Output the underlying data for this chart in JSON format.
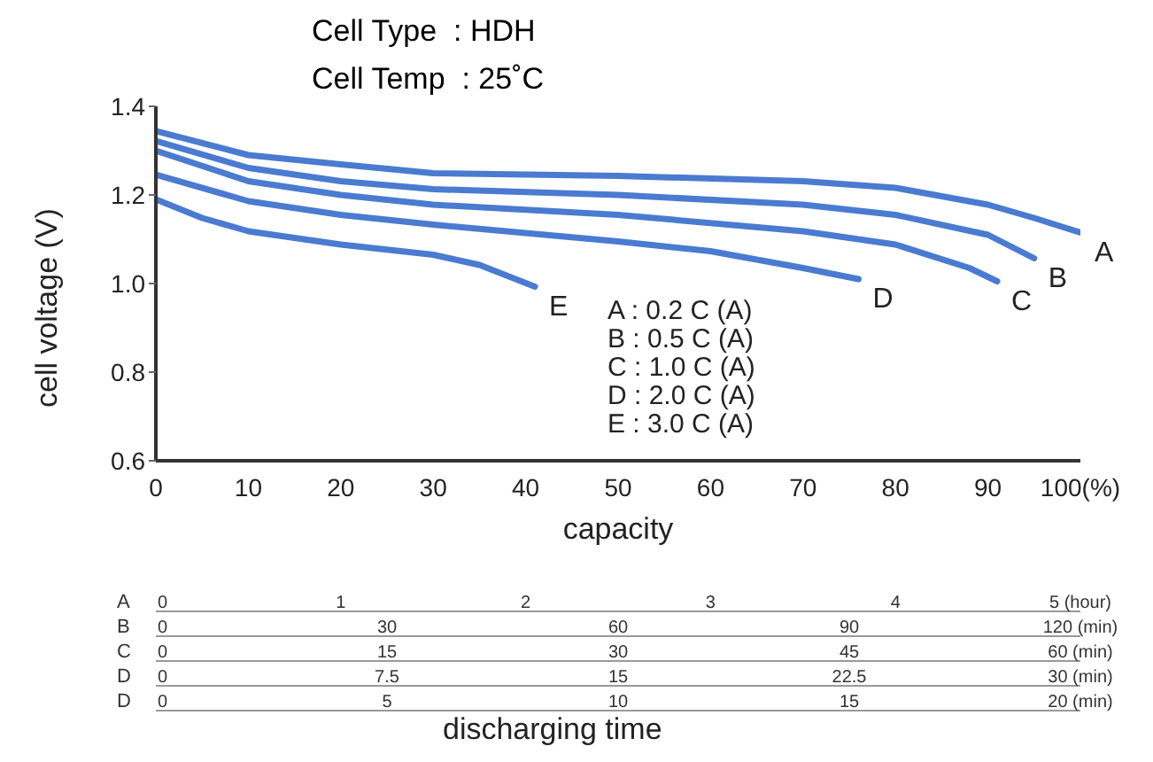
{
  "chart_data": {
    "type": "line",
    "title": "Cell Type  : HDH",
    "subtitle": "Cell Temp  : 25˚C",
    "xlabel": "capacity",
    "ylabel": "cell voltage (V)",
    "xlim": [
      0,
      100
    ],
    "xticks": [
      0,
      10,
      20,
      30,
      40,
      50,
      60,
      70,
      80,
      90,
      {
        "value": 100,
        "label": "100(%)"
      }
    ],
    "ylim": [
      0.6,
      1.4
    ],
    "yticks": [
      {
        "value": 0.6,
        "label": "0.6"
      },
      {
        "value": 0.8,
        "label": "0.8"
      },
      {
        "value": 1,
        "label": "1.0"
      },
      {
        "value": 1.2,
        "label": "1.2"
      },
      {
        "value": 1.4,
        "label": "1.4"
      }
    ],
    "x2label": "A",
    "x2lim": [
      0,
      5
    ],
    "x2ticks": [
      0,
      1,
      2,
      3,
      4,
      {
        "value": 5,
        "label": "5 (hour)"
      }
    ],
    "grid": false,
    "legend": false,
    "marker": "none",
    "line_style": "solid",
    "annotations": [
      "A : 0.2 C (A)",
      "B : 0.5 C (A)",
      "C : 1.0 C (A)",
      "D : 2.0 C (A)",
      "E : 3.0 C (A)",
      "discharging time",
      "B",
      "0",
      "30",
      "60",
      "90",
      "120 (min)",
      "C",
      "0",
      "15",
      "30",
      "45",
      "60 (min)",
      "D",
      "0",
      "7.5",
      "15",
      "22.5",
      "30 (min)",
      "D",
      "0",
      "5",
      "10",
      "15",
      "20 (min)"
    ],
    "series": [
      {
        "name": "A",
        "color": "#4a7bd0",
        "x": [
          0,
          10,
          20,
          30,
          50,
          70,
          80,
          90,
          95,
          100
        ],
        "values": [
          1.344,
          1.29,
          1.269,
          1.249,
          1.243,
          1.231,
          1.216,
          1.178,
          1.148,
          1.115
        ]
      },
      {
        "name": "B",
        "color": "#4a7bd0",
        "x": [
          0,
          10,
          20,
          30,
          50,
          70,
          80,
          90,
          95
        ],
        "values": [
          1.322,
          1.261,
          1.231,
          1.213,
          1.2,
          1.178,
          1.155,
          1.11,
          1.057
        ]
      },
      {
        "name": "C",
        "color": "#4a7bd0",
        "x": [
          0,
          10,
          20,
          30,
          50,
          70,
          80,
          88,
          91
        ],
        "values": [
          1.3,
          1.231,
          1.2,
          1.178,
          1.155,
          1.118,
          1.088,
          1.035,
          1.005
        ]
      },
      {
        "name": "D",
        "color": "#4a7bd0",
        "x": [
          0,
          10,
          20,
          30,
          50,
          60,
          70,
          76
        ],
        "values": [
          1.246,
          1.186,
          1.155,
          1.133,
          1.095,
          1.073,
          1.035,
          1.01
        ]
      },
      {
        "name": "E",
        "color": "#4a7bd0",
        "x": [
          0,
          5,
          10,
          20,
          30,
          35,
          41
        ],
        "values": [
          1.19,
          1.148,
          1.118,
          1.088,
          1.065,
          1.042,
          0.993
        ]
      }
    ]
  }
}
